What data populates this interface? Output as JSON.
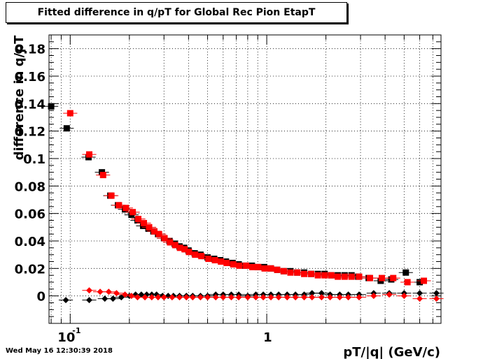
{
  "title": "Fitted difference in q/pT for Global Rec Pion EtapT",
  "timestamp": "Wed May 16 12:30:39 2018",
  "chart_data": {
    "type": "scatter",
    "title": "Fitted difference in q/pT for Global Rec Pion EtapT",
    "xlabel": "pT/|q| (GeV/c)",
    "ylabel": "difference in q/pT",
    "xscale": "log",
    "xlim": [
      0.078,
      7.7
    ],
    "ylim": [
      -0.02,
      0.19
    ],
    "grid": true,
    "x_tick_labels": [
      "10",
      "1"
    ],
    "x_tick_label_exponent": "-1",
    "y_tick_labels": [
      "0",
      "0.02",
      "0.04",
      "0.06",
      "0.08",
      "0.1",
      "0.12",
      "0.14",
      "0.16",
      "0.18"
    ],
    "y_ticks": [
      0,
      0.02,
      0.04,
      0.06,
      0.08,
      0.1,
      0.12,
      0.14,
      0.16,
      0.18
    ],
    "series": [
      {
        "marker": "square",
        "color": "#000000",
        "x": [
          0.08,
          0.096,
          0.124,
          0.145,
          0.16,
          0.175,
          0.19,
          0.205,
          0.22,
          0.235,
          0.25,
          0.265,
          0.28,
          0.3,
          0.32,
          0.34,
          0.36,
          0.38,
          0.4,
          0.43,
          0.46,
          0.5,
          0.54,
          0.58,
          0.62,
          0.67,
          0.72,
          0.78,
          0.84,
          0.9,
          0.97,
          1.05,
          1.13,
          1.22,
          1.32,
          1.43,
          1.55,
          1.68,
          1.82,
          1.97,
          2.13,
          2.3,
          2.49,
          2.7,
          2.92,
          3.3,
          3.8,
          4.3,
          5.1,
          6.0
        ],
        "y": [
          0.138,
          0.122,
          0.101,
          0.09,
          0.073,
          0.066,
          0.063,
          0.059,
          0.055,
          0.051,
          0.049,
          0.047,
          0.045,
          0.042,
          0.04,
          0.038,
          0.036,
          0.035,
          0.033,
          0.031,
          0.03,
          0.028,
          0.027,
          0.026,
          0.025,
          0.024,
          0.023,
          0.022,
          0.022,
          0.021,
          0.021,
          0.02,
          0.019,
          0.018,
          0.018,
          0.017,
          0.017,
          0.016,
          0.016,
          0.016,
          0.015,
          0.015,
          0.015,
          0.015,
          0.014,
          0.013,
          0.011,
          0.012,
          0.017,
          0.01
        ]
      },
      {
        "marker": "square",
        "color": "#ff0000",
        "x": [
          0.1,
          0.125,
          0.147,
          0.162,
          0.177,
          0.192,
          0.208,
          0.222,
          0.237,
          0.252,
          0.268,
          0.283,
          0.302,
          0.322,
          0.342,
          0.362,
          0.382,
          0.402,
          0.432,
          0.465,
          0.505,
          0.545,
          0.585,
          0.625,
          0.675,
          0.725,
          0.785,
          0.845,
          0.905,
          0.975,
          1.05,
          1.13,
          1.22,
          1.32,
          1.43,
          1.55,
          1.68,
          1.82,
          1.97,
          2.13,
          2.3,
          2.49,
          2.7,
          2.95,
          3.35,
          3.85,
          4.4,
          5.2,
          6.3
        ],
        "y": [
          0.133,
          0.103,
          0.088,
          0.073,
          0.066,
          0.064,
          0.061,
          0.056,
          0.053,
          0.05,
          0.047,
          0.045,
          0.042,
          0.039,
          0.037,
          0.035,
          0.034,
          0.032,
          0.03,
          0.029,
          0.027,
          0.026,
          0.025,
          0.024,
          0.023,
          0.022,
          0.022,
          0.021,
          0.021,
          0.02,
          0.02,
          0.019,
          0.018,
          0.017,
          0.017,
          0.016,
          0.016,
          0.015,
          0.015,
          0.015,
          0.014,
          0.014,
          0.014,
          0.014,
          0.013,
          0.013,
          0.013,
          0.01,
          0.011
        ]
      },
      {
        "marker": "diamond",
        "color": "#000000",
        "x": [
          0.095,
          0.125,
          0.15,
          0.165,
          0.182,
          0.2,
          0.215,
          0.23,
          0.245,
          0.26,
          0.275,
          0.295,
          0.315,
          0.335,
          0.36,
          0.39,
          0.42,
          0.46,
          0.5,
          0.55,
          0.6,
          0.66,
          0.72,
          0.8,
          0.88,
          0.96,
          1.05,
          1.15,
          1.27,
          1.4,
          1.55,
          1.7,
          1.9,
          2.1,
          2.35,
          2.6,
          2.95,
          3.5,
          4.2,
          5.0,
          6.0,
          7.3
        ],
        "y": [
          -0.003,
          -0.003,
          -0.002,
          -0.002,
          -0.001,
          0.0,
          0.001,
          0.001,
          0.001,
          0.001,
          0.001,
          0.0,
          0.0,
          0.0,
          0.0,
          0.0,
          0.0,
          0.0,
          0.0,
          0.001,
          0.001,
          0.001,
          0.001,
          0.0,
          0.001,
          0.001,
          0.001,
          0.001,
          0.001,
          0.001,
          0.001,
          0.002,
          0.002,
          0.001,
          0.001,
          0.001,
          0.001,
          0.002,
          0.002,
          0.002,
          0.002,
          0.002
        ]
      },
      {
        "marker": "diamond",
        "color": "#ff0000",
        "x": [
          0.125,
          0.142,
          0.157,
          0.172,
          0.19,
          0.205,
          0.22,
          0.24,
          0.26,
          0.28,
          0.3,
          0.33,
          0.36,
          0.39,
          0.42,
          0.46,
          0.5,
          0.55,
          0.6,
          0.66,
          0.72,
          0.8,
          0.88,
          0.96,
          1.05,
          1.15,
          1.27,
          1.4,
          1.55,
          1.7,
          1.9,
          2.1,
          2.35,
          2.6,
          2.95,
          3.5,
          4.2,
          5.0,
          6.0,
          7.3
        ],
        "y": [
          0.004,
          0.003,
          0.003,
          0.002,
          0.001,
          0.0,
          -0.001,
          -0.001,
          -0.001,
          -0.001,
          -0.001,
          -0.001,
          -0.001,
          -0.001,
          -0.001,
          -0.001,
          -0.001,
          -0.001,
          -0.001,
          -0.001,
          -0.001,
          -0.001,
          -0.001,
          -0.001,
          -0.001,
          -0.001,
          -0.001,
          -0.001,
          -0.001,
          -0.001,
          -0.001,
          -0.001,
          -0.001,
          -0.001,
          -0.001,
          0.0,
          0.001,
          0.0,
          -0.002,
          -0.002
        ]
      }
    ]
  }
}
